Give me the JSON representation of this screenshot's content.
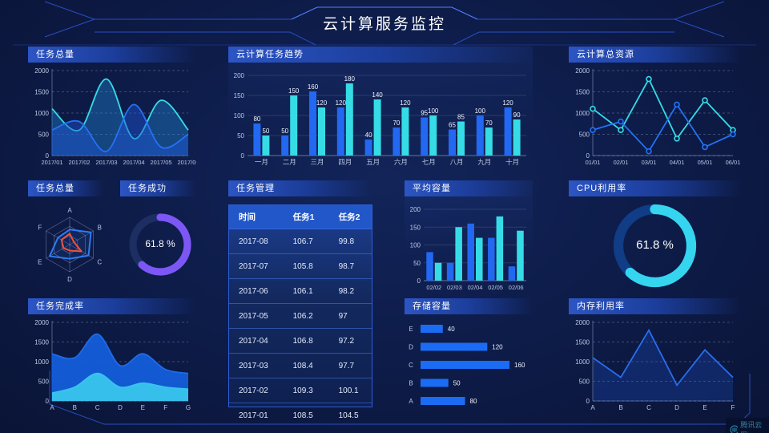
{
  "header": {
    "title": "云计算服务监控"
  },
  "footer": {
    "brand": "腾讯云图"
  },
  "colors": {
    "blue": "#2268f0",
    "cyan": "#30d6e6",
    "purple": "#7d57f5",
    "red": "#f0503c",
    "axis": "#bcc8e4",
    "axisline": "rgba(190,205,235,0.4)",
    "grid": "rgba(190,205,235,0.28)",
    "gridSolid": "rgba(190,205,235,0.15)",
    "label": "#eef3ff",
    "radarGrid": "rgba(200,212,240,0.4)"
  },
  "chart_data": [
    {
      "id": "task-total-line",
      "type": "area",
      "title": "任务总量",
      "smooth": true,
      "grid": "dashed",
      "categories": [
        "2017/01",
        "2017/02",
        "2017/03",
        "2017/04",
        "2017/05",
        "2017/06"
      ],
      "xfs": 7.5,
      "ylim": [
        0,
        2000
      ],
      "yticks": [
        0,
        500,
        1000,
        1500,
        2000
      ],
      "series": [
        {
          "name": "cyan",
          "color": "#35dce6",
          "fill": "rgba(34,140,220,0.38)",
          "values": [
            1100,
            600,
            1800,
            400,
            1300,
            600
          ]
        },
        {
          "name": "blue",
          "color": "#2472f5",
          "fill": "rgba(28,85,215,0.45)",
          "values": [
            600,
            800,
            100,
            1200,
            200,
            500
          ]
        }
      ]
    },
    {
      "id": "task-trend",
      "type": "bar",
      "title": "云计算任务趋势",
      "labels": true,
      "categories": [
        "一月",
        "二月",
        "三月",
        "四月",
        "五月",
        "六月",
        "七月",
        "八月",
        "九月",
        "十月"
      ],
      "xfs": 8.5,
      "ylim": [
        0,
        200
      ],
      "yticks": [
        0,
        50,
        100,
        150,
        200
      ],
      "series": [
        {
          "name": "blue",
          "color": "#2268f0",
          "values": [
            80,
            50,
            160,
            120,
            40,
            70,
            95,
            65,
            100,
            120
          ]
        },
        {
          "name": "cyan",
          "color": "#35dce6",
          "values": [
            50,
            150,
            120,
            180,
            140,
            120,
            100,
            85,
            70,
            90
          ]
        }
      ]
    },
    {
      "id": "total-resources",
      "type": "line",
      "title": "云计算总资源",
      "markers": true,
      "categories": [
        "01/01",
        "02/01",
        "03/01",
        "04/01",
        "05/01",
        "06/01"
      ],
      "xfs": 7.5,
      "ylim": [
        0,
        2000
      ],
      "yticks": [
        0,
        500,
        1000,
        1500,
        2000
      ],
      "series": [
        {
          "name": "cyan",
          "color": "#35dce6",
          "values": [
            1100,
            600,
            1800,
            400,
            1300,
            600
          ]
        },
        {
          "name": "blue",
          "color": "#2472f5",
          "values": [
            600,
            800,
            100,
            1200,
            200,
            500
          ]
        }
      ]
    },
    {
      "id": "task-radar",
      "type": "radar",
      "title": "任务总量",
      "max": 100,
      "indicators": [
        "A",
        "B",
        "C",
        "D",
        "E",
        "F"
      ],
      "series": [
        {
          "name": "blue",
          "color": "#2e7bf0",
          "values": [
            55,
            90,
            80,
            52,
            85,
            50
          ]
        },
        {
          "name": "red",
          "color": "#f0503c",
          "values": [
            40,
            18,
            50,
            22,
            26,
            35
          ]
        }
      ]
    },
    {
      "id": "task-success",
      "type": "gauge",
      "title": "任务成功",
      "value": 61.8,
      "display": "61.8 %",
      "color": "#7d57f5",
      "track": "#1c2e62"
    },
    {
      "id": "task-table",
      "type": "table",
      "title": "任务管理",
      "columns": [
        "时间",
        "任务1",
        "任务2"
      ],
      "rows": [
        [
          "2017-08",
          "106.7",
          "99.8"
        ],
        [
          "2017-07",
          "105.8",
          "98.7"
        ],
        [
          "2017-06",
          "106.1",
          "98.2"
        ],
        [
          "2017-05",
          "106.2",
          "97"
        ],
        [
          "2017-04",
          "106.8",
          "97.2"
        ],
        [
          "2017-03",
          "108.4",
          "97.7"
        ],
        [
          "2017-02",
          "109.3",
          "100.1"
        ],
        [
          "2017-01",
          "108.5",
          "104.5"
        ]
      ]
    },
    {
      "id": "avg-capacity",
      "type": "bar",
      "title": "平均容量",
      "labels": false,
      "categories": [
        "02/02",
        "02/03",
        "02/04",
        "02/05",
        "02/06"
      ],
      "xfs": 7.5,
      "ylim": [
        0,
        200
      ],
      "yticks": [
        0,
        50,
        100,
        150,
        200
      ],
      "series": [
        {
          "name": "blue",
          "color": "#2268f0",
          "values": [
            80,
            50,
            160,
            120,
            40
          ]
        },
        {
          "name": "cyan",
          "color": "#35dce6",
          "values": [
            50,
            150,
            120,
            180,
            140
          ]
        }
      ]
    },
    {
      "id": "cpu-usage",
      "type": "gauge",
      "title": "CPU利用率",
      "value": 61.8,
      "display": "61.8 %",
      "color": "#35d5f0",
      "track": "#113c86"
    },
    {
      "id": "completion-rate",
      "type": "area",
      "title": "任务完成率",
      "smooth": true,
      "categories": [
        "A",
        "B",
        "C",
        "D",
        "E",
        "F",
        "G"
      ],
      "xfs": 8,
      "ylim": [
        0,
        2000
      ],
      "yticks": [
        0,
        500,
        1000,
        1500,
        2000
      ],
      "series": [
        {
          "name": "blue",
          "color": "#1f6ae8",
          "fill": "rgba(21,95,222,0.92)",
          "values": [
            1200,
            1100,
            1700,
            900,
            1200,
            800,
            700
          ]
        },
        {
          "name": "cyan",
          "color": "#38c5ec",
          "fill": "rgba(56,197,236,0.95)",
          "values": [
            200,
            350,
            700,
            350,
            450,
            350,
            300
          ]
        }
      ]
    },
    {
      "id": "storage",
      "type": "hbar",
      "title": "存储容量",
      "color": "#1b6cf5",
      "xmax": 170,
      "categories": [
        "E",
        "D",
        "C",
        "B",
        "A"
      ],
      "values": [
        40,
        120,
        160,
        50,
        80
      ]
    },
    {
      "id": "memory-usage",
      "type": "line",
      "title": "内存利用率",
      "smooth": false,
      "categories": [
        "A",
        "B",
        "C",
        "D",
        "E",
        "F"
      ],
      "xfs": 8,
      "ylim": [
        0,
        2000
      ],
      "yticks": [
        0,
        500,
        1000,
        1500,
        2000
      ],
      "series": [
        {
          "name": "blue",
          "color": "#2a6df0",
          "fill": "rgba(30,90,220,0.26)",
          "values": [
            1100,
            600,
            1800,
            400,
            1300,
            600
          ]
        }
      ]
    }
  ]
}
